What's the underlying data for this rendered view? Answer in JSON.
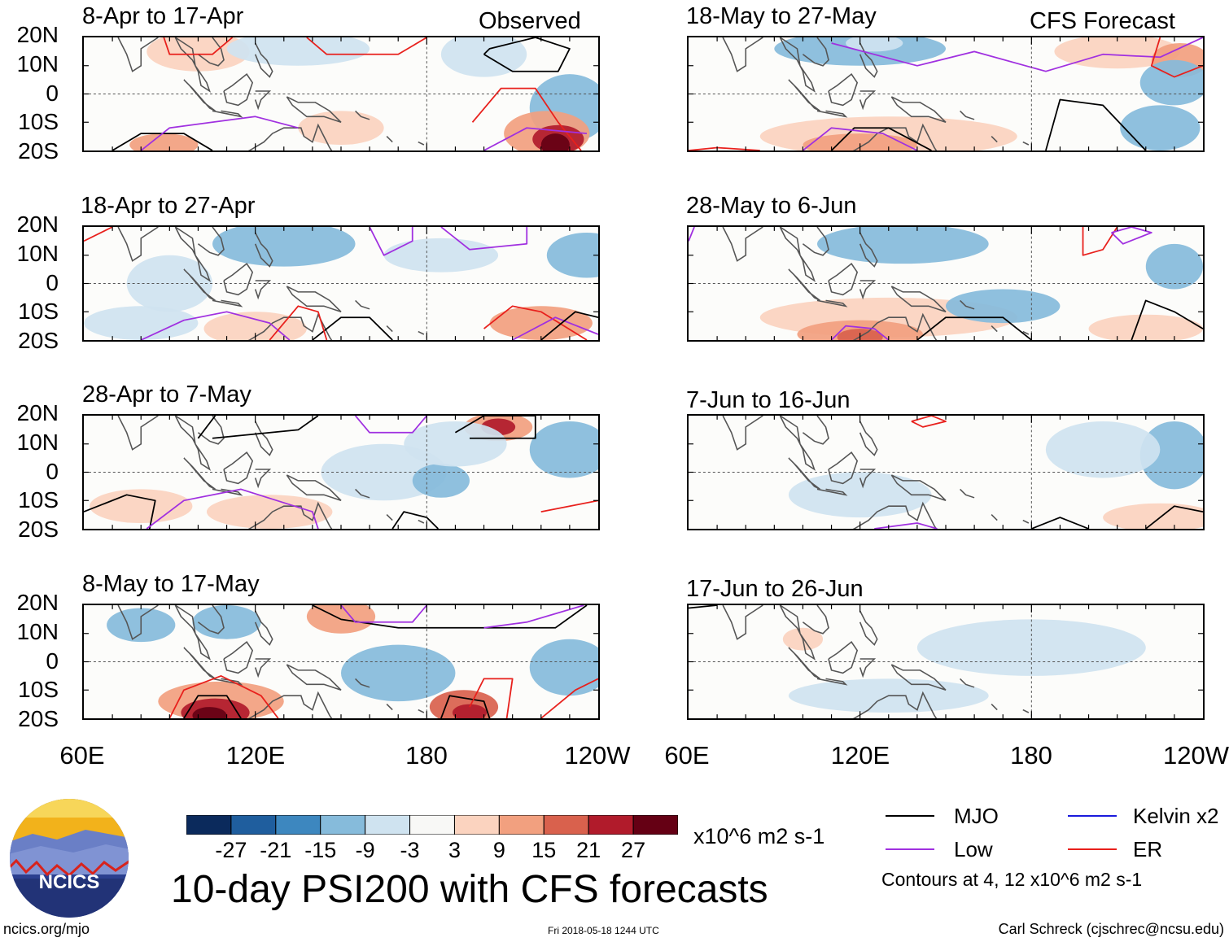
{
  "chart_data": {
    "type": "heatmap",
    "title": "10-day PSI200 with CFS forecasts",
    "units": "x10^6 m2 s-1",
    "y_ticks": [
      "20N",
      "10N",
      "0",
      "10S",
      "20S"
    ],
    "x_ticks": [
      "60E",
      "120E",
      "180",
      "120W"
    ],
    "lon_range": [
      60,
      240
    ],
    "lat_range": [
      -20,
      20
    ],
    "columns": [
      {
        "label": "Observed",
        "panels": [
          {
            "title": "8-Apr to 17-Apr"
          },
          {
            "title": "18-Apr to 27-Apr"
          },
          {
            "title": "28-Apr to 7-May"
          },
          {
            "title": "8-May to 17-May"
          }
        ]
      },
      {
        "label": "CFS Forecast",
        "panels": [
          {
            "title": "18-May to 27-May"
          },
          {
            "title": "28-May to 6-Jun"
          },
          {
            "title": "7-Jun to 16-Jun"
          },
          {
            "title": "17-Jun to 26-Jun"
          }
        ]
      }
    ],
    "colorbar": {
      "labels": [
        "-27",
        "-21",
        "-15",
        "-9",
        "-3",
        "3",
        "9",
        "15",
        "21",
        "27"
      ],
      "colors": [
        "#0b2a5c",
        "#1f5e9e",
        "#3d87bf",
        "#86bbdb",
        "#cfe3f0",
        "#f8f8f6",
        "#fbd3bf",
        "#f2a07f",
        "#d9614d",
        "#b11b2b",
        "#650014"
      ]
    },
    "legend": [
      {
        "label": "MJO",
        "color": "#000000"
      },
      {
        "label": "Kelvin x2",
        "color": "#1a1adc"
      },
      {
        "label": "Low",
        "color": "#a030e0"
      },
      {
        "label": "ER",
        "color": "#e8201c"
      }
    ],
    "contour_note": "Contours at 4, 12 x10^6 m2 s-1"
  },
  "logo_text": "NCICS",
  "footer": {
    "url": "ncics.org/mjo",
    "timestamp": "Fri 2018-05-18 1244 UTC",
    "author": "Carl Schreck (cjschrec@ncsu.edu)"
  }
}
